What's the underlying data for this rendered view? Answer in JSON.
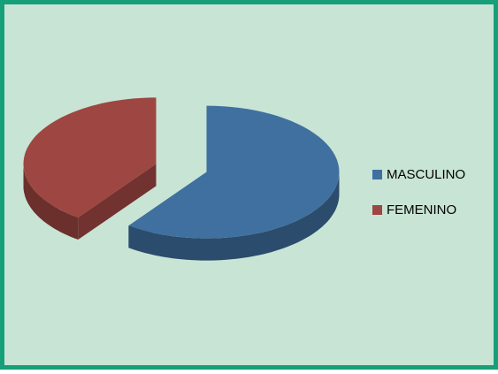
{
  "chart_data": {
    "type": "pie",
    "categories": [
      "MASCULINO",
      "FEMENINO"
    ],
    "values": [
      60,
      40
    ],
    "colors": [
      "#3f70a0",
      "#9e4641"
    ],
    "legend": "right"
  }
}
